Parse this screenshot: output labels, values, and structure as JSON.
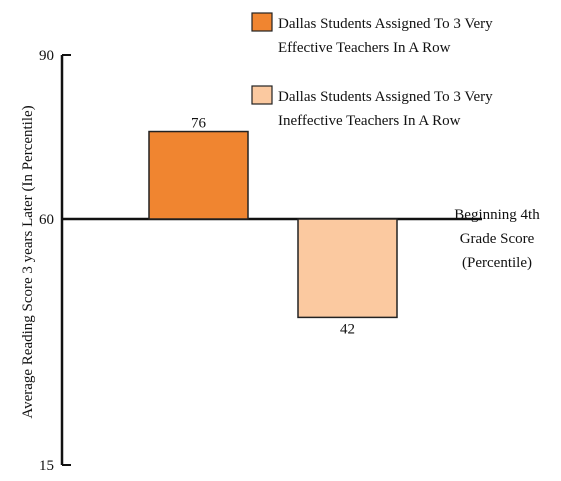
{
  "chart_data": {
    "type": "bar",
    "title": "",
    "baseline": 60,
    "baseline_label": [
      "Beginning 4th",
      "Grade Score",
      "(Percentile)"
    ],
    "ylabel": "Average Reading Score 3 years Later (In Percentile)",
    "xlabel": "",
    "ylim": [
      15,
      90
    ],
    "ytick_labels": [
      {
        "value": 90,
        "label": "90"
      },
      {
        "value": 60,
        "label": "60"
      },
      {
        "value": 15,
        "label": "15"
      }
    ],
    "legend_position": "top-right",
    "series": [
      {
        "name_lines": [
          "Dallas Students Assigned To 3 Very",
          "Effective Teachers In A Row"
        ],
        "value": 76,
        "label": "76",
        "color": "#f08530"
      },
      {
        "name_lines": [
          "Dallas Students Assigned To 3 Very",
          "Ineffective Teachers In A Row"
        ],
        "value": 42,
        "label": "42",
        "color": "#fbc9a0"
      }
    ],
    "grid": false
  }
}
